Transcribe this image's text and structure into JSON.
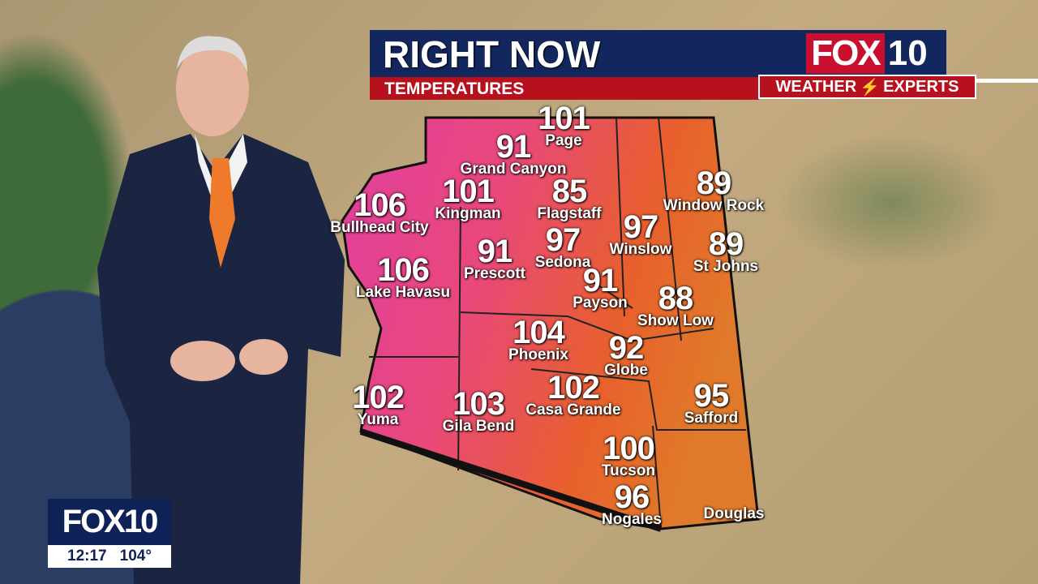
{
  "graphic": {
    "title": "RIGHT NOW",
    "subtitle": "TEMPERATURES"
  },
  "logo": {
    "brand": "FOX",
    "number": "10",
    "tagline_left": "WEATHER",
    "tagline_right": "EXPERTS",
    "bolt_icon": "lightning-bolt-icon"
  },
  "bug": {
    "logo": "FOX10",
    "time": "12:17",
    "temp": "104°"
  },
  "colors": {
    "navy": "#12275e",
    "red": "#b6111d",
    "hot": "#e83a7a",
    "warm": "#e8542c"
  },
  "cities": [
    {
      "temp": "101",
      "name": "Page"
    },
    {
      "temp": "91",
      "name": "Grand Canyon"
    },
    {
      "temp": "106",
      "name": "Bullhead City"
    },
    {
      "temp": "101",
      "name": "Kingman"
    },
    {
      "temp": "85",
      "name": "Flagstaff"
    },
    {
      "temp": "89",
      "name": "Window Rock"
    },
    {
      "temp": "97",
      "name": "Winslow"
    },
    {
      "temp": "91",
      "name": "Prescott"
    },
    {
      "temp": "97",
      "name": "Sedona"
    },
    {
      "temp": "89",
      "name": "St Johns"
    },
    {
      "temp": "106",
      "name": "Lake Havasu"
    },
    {
      "temp": "91",
      "name": "Payson"
    },
    {
      "temp": "88",
      "name": "Show Low"
    },
    {
      "temp": "104",
      "name": "Phoenix"
    },
    {
      "temp": "92",
      "name": "Globe"
    },
    {
      "temp": "102",
      "name": "Yuma"
    },
    {
      "temp": "103",
      "name": "Gila Bend"
    },
    {
      "temp": "102",
      "name": "Casa Grande"
    },
    {
      "temp": "95",
      "name": "Safford"
    },
    {
      "temp": "100",
      "name": "Tucson"
    },
    {
      "temp": "96",
      "name": "Nogales"
    },
    {
      "temp": "",
      "name": "Douglas"
    }
  ]
}
